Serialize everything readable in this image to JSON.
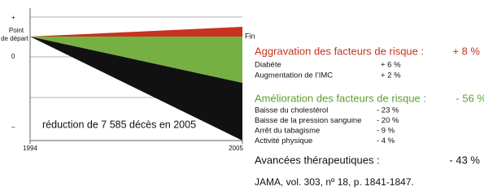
{
  "chart": {
    "start_label": [
      "Point",
      "de départ"
    ],
    "axis_plus": "+",
    "axis_zero": "0",
    "axis_minus": "–",
    "end_label": "Fin",
    "x_start": "1994",
    "x_end": "2005",
    "annotation": "réduction de 7 585 décès en 2005"
  },
  "aggravation": {
    "title": "Aggravation des facteurs de risque :",
    "value": "+ 8 %",
    "items": [
      [
        "Diabète",
        "+ 6 %"
      ],
      [
        "Augmentation de l’IMC",
        "+ 2 %"
      ]
    ]
  },
  "amelioration": {
    "title": "Amélioration des facteurs de risque :",
    "value": "- 56 %",
    "items": [
      [
        "Baisse du cholestérol",
        "- 23 %"
      ],
      [
        "Baisse de la pression sanguine",
        "- 20 %"
      ],
      [
        "Arrêt du tabagisme",
        "- 9 %"
      ],
      [
        "Activité physique",
        "- 4 %"
      ]
    ]
  },
  "therapeutic": {
    "title": "Avancées thérapeutiques :",
    "value": "- 43 %"
  },
  "source": "JAMA, vol. 303, nº 18, p. 1841-1847."
}
